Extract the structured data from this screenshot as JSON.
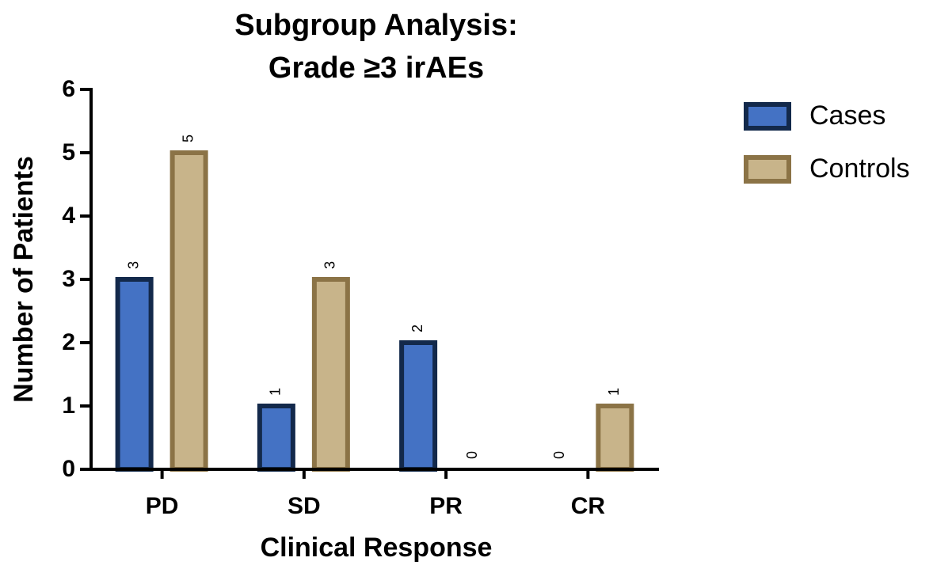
{
  "chart_data": {
    "type": "bar",
    "title": [
      "Subgroup Analysis:",
      "Grade ≥3 irAEs"
    ],
    "x_label": "Clinical Response",
    "y_label": "Number of Patients",
    "categories": [
      "PD",
      "SD",
      "PR",
      "CR"
    ],
    "series": [
      {
        "name": "Cases",
        "color": "#4472c4",
        "edge_color": "#13294b",
        "values": [
          3,
          1,
          2,
          0
        ]
      },
      {
        "name": "Controls",
        "color": "#c8b48a",
        "edge_color": "#8b7346",
        "values": [
          5,
          3,
          0,
          1
        ]
      }
    ],
    "ylim": [
      0,
      6
    ],
    "yticks": [
      0,
      1,
      2,
      3,
      4,
      5,
      6
    ],
    "grid": false,
    "legend": "right"
  }
}
